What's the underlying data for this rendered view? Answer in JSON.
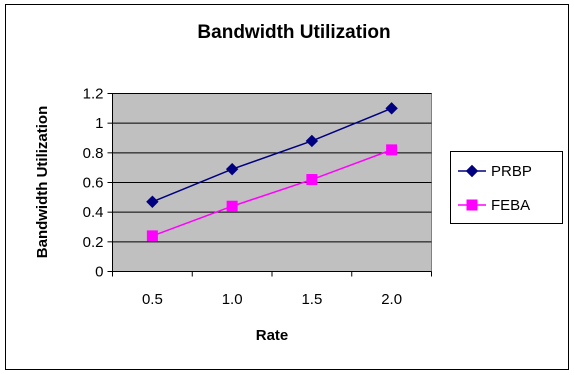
{
  "chart_data": {
    "type": "line",
    "title": "Bandwidth Utilization",
    "xlabel": "Rate",
    "ylabel": "Bandwidth Utilization",
    "categories": [
      "0.5",
      "1.0",
      "1.5",
      "2.0"
    ],
    "y_ticks": [
      "0",
      "0.2",
      "0.4",
      "0.6",
      "0.8",
      "1",
      "1.2"
    ],
    "ylim": [
      0,
      1.2
    ],
    "grid": "horizontal",
    "legend_position": "right",
    "plot_background": "#c0c0c0",
    "series": [
      {
        "name": "PRBP",
        "values": [
          0.47,
          0.69,
          0.88,
          1.1
        ],
        "color": "#000080",
        "marker": "diamond"
      },
      {
        "name": "FEBA",
        "values": [
          0.24,
          0.44,
          0.62,
          0.82
        ],
        "color": "#ff00ff",
        "marker": "square"
      }
    ]
  }
}
